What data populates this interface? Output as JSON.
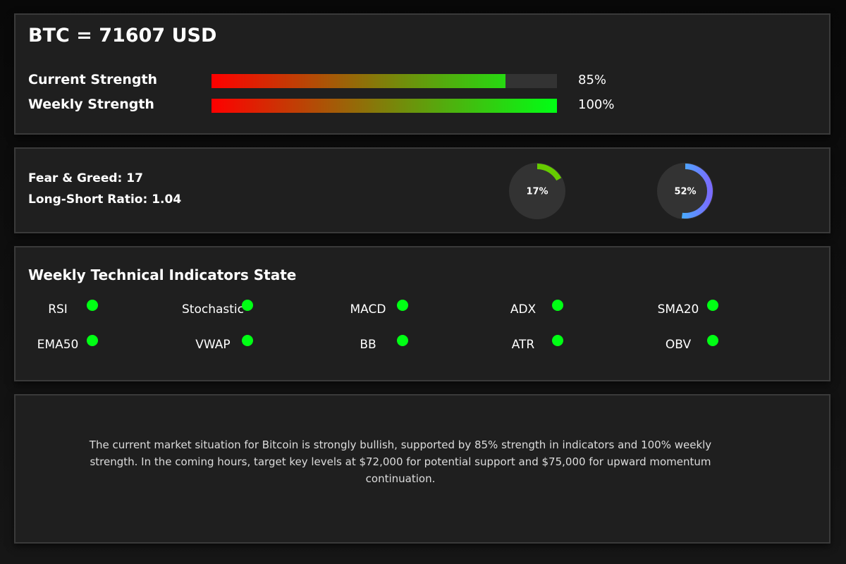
{
  "header": {
    "title": "BTC = 71607 USD"
  },
  "strength": {
    "gradient_start": "#ff0000",
    "gradient_end": "#00ff14",
    "track_color": "#333333",
    "current": {
      "label": "Current Strength",
      "value_text": "85%",
      "fraction": 0.85
    },
    "weekly": {
      "label": "Weekly Strength",
      "value_text": "100%",
      "fraction": 1.0
    }
  },
  "sentiment": {
    "fear_greed_text": "Fear & Greed: 17",
    "long_short_text": "Long-Short Ratio: 1.04",
    "gauges": [
      {
        "name": "fear-greed-gauge",
        "value_text": "17%",
        "fraction": 0.17,
        "colors": [
          "#66cc00",
          "#66cc00"
        ]
      },
      {
        "name": "long-short-gauge",
        "value_text": "52%",
        "fraction": 0.52,
        "colors": [
          "#22ddff",
          "#7a6cff"
        ]
      }
    ]
  },
  "indicators": {
    "title": "Weekly Technical Indicators State",
    "dot_color": "#00ff14",
    "items": [
      {
        "label": "RSI"
      },
      {
        "label": "Stochastic"
      },
      {
        "label": "MACD"
      },
      {
        "label": "ADX"
      },
      {
        "label": "SMA20"
      },
      {
        "label": "EMA50"
      },
      {
        "label": "VWAP"
      },
      {
        "label": "BB"
      },
      {
        "label": "ATR"
      },
      {
        "label": "OBV"
      }
    ]
  },
  "summary": {
    "text": "The current market situation for Bitcoin is strongly bullish, supported by 85% strength in indicators and 100% weekly strength. In the coming hours, target key levels at $72,000 for potential support and $75,000 for upward momentum continuation."
  }
}
